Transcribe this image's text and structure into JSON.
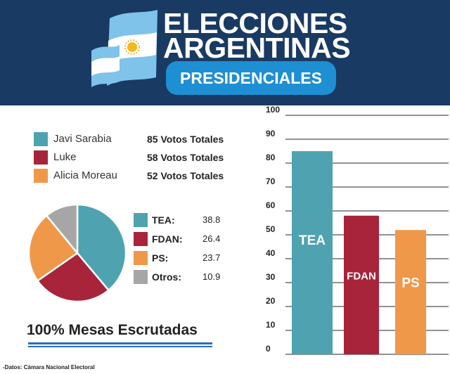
{
  "header": {
    "title_line1": "ELECCIONES",
    "title_line2": "ARGENTINAS",
    "subtitle": "PRESIDENCIALES"
  },
  "candidates": [
    {
      "name": "Javi Sarabia",
      "votes": "85 Votos Totales",
      "color": "#4fa3b0"
    },
    {
      "name": "Luke",
      "votes": "58 Votos Totales",
      "color": "#a8243a"
    },
    {
      "name": "Alicia Moreau",
      "votes": "52 Votos Totales",
      "color": "#f0984a"
    }
  ],
  "footer": {
    "scrutiny": "100% Mesas Escrutadas",
    "source": "-Datos: Cámara Nacional Electoral"
  },
  "chart_data": [
    {
      "type": "pie",
      "slices": [
        {
          "label": "TEA:",
          "value": 38.8,
          "display": "38.8",
          "color": "#4fa3b0"
        },
        {
          "label": "FDAN:",
          "value": 26.4,
          "display": "26.4",
          "color": "#a8243a"
        },
        {
          "label": "PS:",
          "value": 23.7,
          "display": "23.7",
          "color": "#f0984a"
        },
        {
          "label": "Otros:",
          "value": 10.9,
          "display": "10.9",
          "color": "#a6a6a6"
        }
      ]
    },
    {
      "type": "bar",
      "categories": [
        "TEA",
        "FDAN",
        "PS"
      ],
      "values": [
        85,
        58,
        52
      ],
      "colors": [
        "#4fa3b0",
        "#a8243a",
        "#f0984a"
      ],
      "ylim": [
        0,
        100
      ],
      "yticks": [
        0,
        10,
        20,
        30,
        40,
        50,
        60,
        70,
        80,
        90,
        100
      ],
      "grid": true
    }
  ]
}
